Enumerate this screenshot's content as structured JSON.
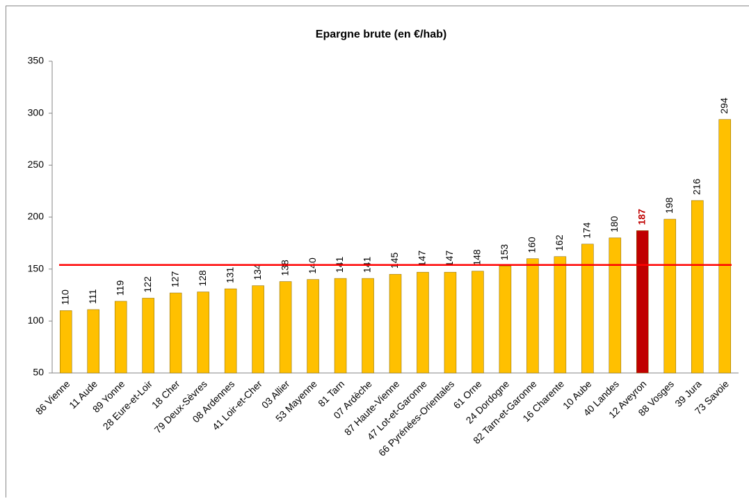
{
  "chart_data": {
    "type": "bar",
    "title": "Epargne brute (en €/hab)",
    "categories": [
      "86 Vienne",
      "11 Aude",
      "89 Yonne",
      "28 Eure-et-Loir",
      "18 Cher",
      "79 Deux-Sèvres",
      "08 Ardennes",
      "41 Loir-et-Cher",
      "03 Allier",
      "53 Mayenne",
      "81 Tarn",
      "07 Ardèche",
      "87 Haute-Vienne",
      "47 Lot-et-Garonne",
      "66 Pyrénées-Orientales",
      "61 Orne",
      "24 Dordogne",
      "82 Tarn-et-Garonne",
      "16 Charente",
      "10 Aube",
      "40 Landes",
      "12 Aveyron",
      "88 Vosges",
      "39 Jura",
      "73 Savoie"
    ],
    "values": [
      110,
      111,
      119,
      122,
      127,
      128,
      131,
      134,
      138,
      140,
      141,
      141,
      145,
      147,
      147,
      148,
      153,
      160,
      162,
      174,
      180,
      187,
      198,
      216,
      294
    ],
    "colors": [
      "#ffc000",
      "#ffc000",
      "#ffc000",
      "#ffc000",
      "#ffc000",
      "#ffc000",
      "#ffc000",
      "#ffc000",
      "#ffc000",
      "#ffc000",
      "#ffc000",
      "#ffc000",
      "#ffc000",
      "#ffc000",
      "#ffc000",
      "#ffc000",
      "#ffc000",
      "#ffc000",
      "#ffc000",
      "#ffc000",
      "#ffc000",
      "#c00000",
      "#ffc000",
      "#ffc000",
      "#ffc000"
    ],
    "value_label_colors": [
      "#000000",
      "#000000",
      "#000000",
      "#000000",
      "#000000",
      "#000000",
      "#000000",
      "#000000",
      "#000000",
      "#000000",
      "#000000",
      "#000000",
      "#000000",
      "#000000",
      "#000000",
      "#000000",
      "#000000",
      "#000000",
      "#000000",
      "#000000",
      "#000000",
      "#c00000",
      "#000000",
      "#000000",
      "#000000"
    ],
    "ylim": [
      50,
      350
    ],
    "yticks": [
      50,
      100,
      150,
      200,
      250,
      300,
      350
    ],
    "grid": false,
    "reference_line": {
      "value": 154,
      "color": "#ff0000"
    }
  }
}
